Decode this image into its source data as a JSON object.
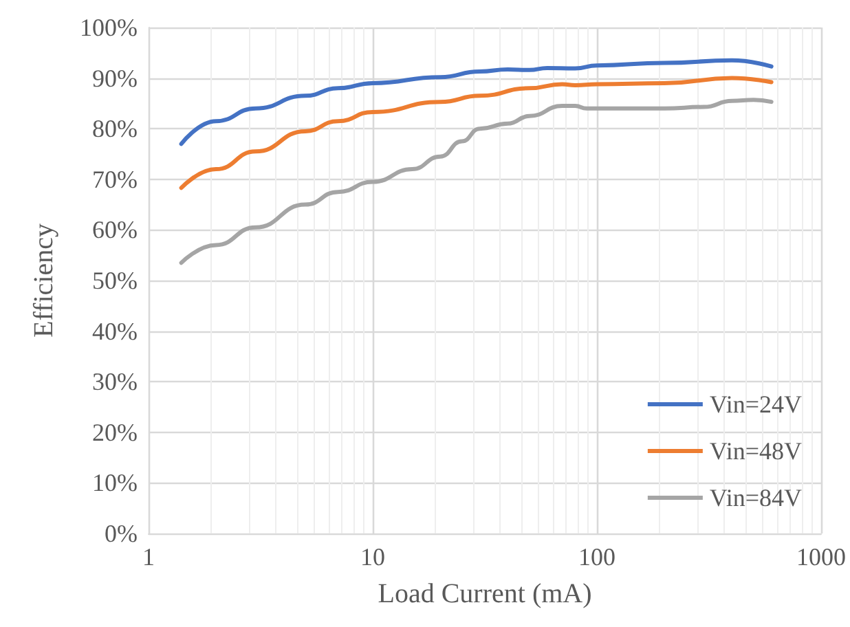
{
  "chart_data": {
    "type": "line",
    "xlabel": "Load Current (mA)",
    "ylabel": "Efficiency",
    "log": "x",
    "xlim": [
      1,
      1000
    ],
    "xticks": [
      1,
      10,
      100,
      1000
    ],
    "ylim": [
      0,
      100
    ],
    "yticks": [
      {
        "value": 0,
        "label": "0%"
      },
      {
        "value": 10,
        "label": "10%"
      },
      {
        "value": 20,
        "label": "20%"
      },
      {
        "value": 30,
        "label": "30%"
      },
      {
        "value": 40,
        "label": "40%"
      },
      {
        "value": 50,
        "label": "50%"
      },
      {
        "value": 60,
        "label": "60%"
      },
      {
        "value": 70,
        "label": "70%"
      },
      {
        "value": 80,
        "label": "80%"
      },
      {
        "value": 90,
        "label": "90%"
      },
      {
        "value": 100,
        "label": "100%"
      }
    ],
    "grid": true,
    "legend": "bottom right",
    "marker": "none",
    "line_style": "solid",
    "series": [
      {
        "name": "Vin=24V",
        "color": "#4472c4",
        "x": [
          1.4,
          2,
          3,
          5,
          7,
          10,
          20,
          30,
          40,
          50,
          60,
          80,
          100,
          200,
          400,
          600
        ],
        "values": [
          77,
          81.5,
          84,
          86.5,
          88,
          89,
          90.2,
          91.3,
          91.7,
          91.6,
          92,
          91.9,
          92.5,
          93,
          93.5,
          92.3
        ]
      },
      {
        "name": "Vin=48V",
        "color": "#ed7d31",
        "x": [
          1.4,
          2,
          3,
          5,
          7,
          10,
          20,
          30,
          50,
          70,
          80,
          100,
          200,
          400,
          600
        ],
        "values": [
          68.3,
          72,
          75.5,
          79.5,
          81.5,
          83.3,
          85.3,
          86.5,
          88,
          88.8,
          88.6,
          88.8,
          89,
          90,
          89.2
        ]
      },
      {
        "name": "Vin=84V",
        "color": "#a5a5a5",
        "x": [
          1.4,
          2,
          3,
          5,
          7,
          10,
          15,
          20,
          25,
          30,
          40,
          50,
          70,
          80,
          90,
          100,
          200,
          300,
          400,
          500,
          600
        ],
        "values": [
          53.5,
          57,
          60.5,
          65,
          67.5,
          69.5,
          72,
          74.5,
          77.5,
          80,
          81,
          82.5,
          84.5,
          84.5,
          84,
          84,
          84,
          84.3,
          85.5,
          85.7,
          85.3
        ]
      }
    ]
  }
}
